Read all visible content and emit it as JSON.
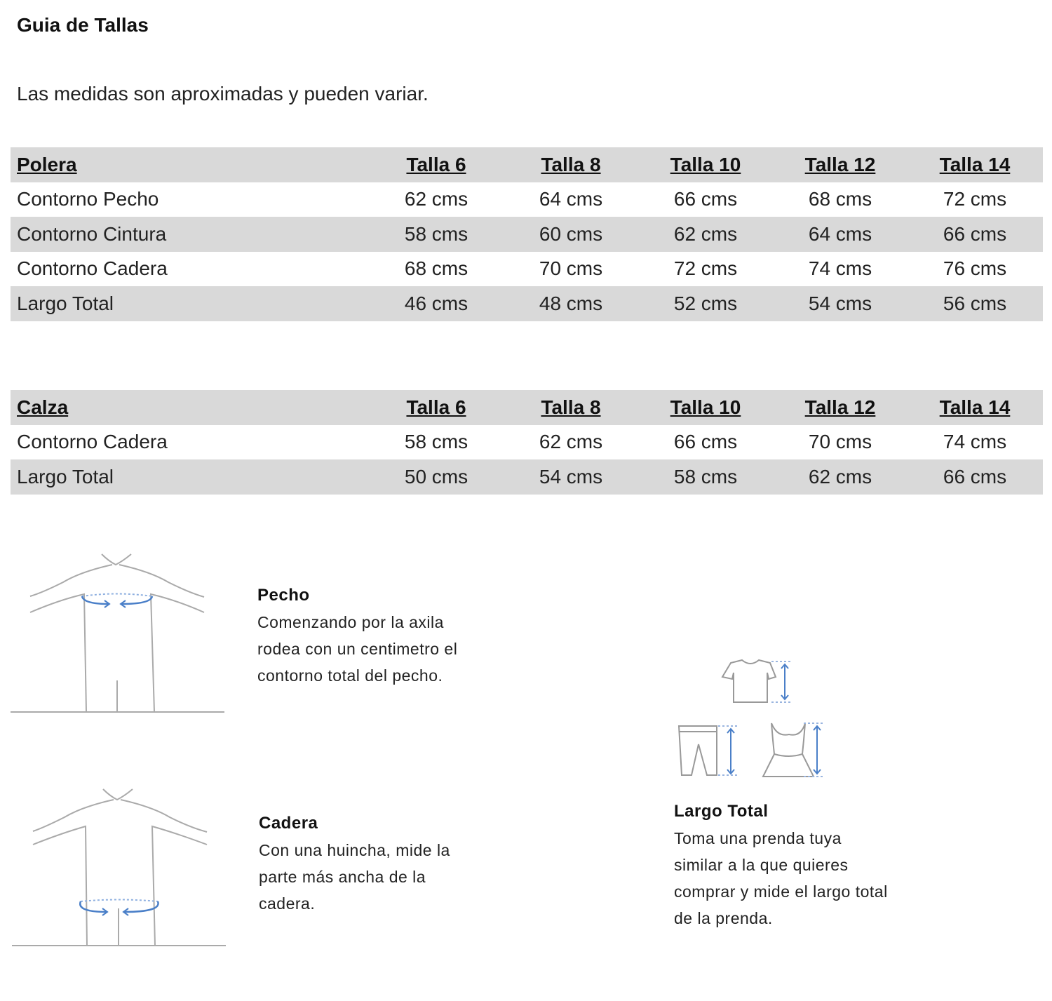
{
  "title": "Guia de Tallas",
  "subtitle": "Las medidas son aproximadas y pueden variar.",
  "tables": [
    {
      "header": [
        "Polera",
        "Talla 6",
        "Talla 8",
        "Talla 10",
        "Talla 12",
        "Talla 14"
      ],
      "rows": [
        [
          "Contorno Pecho",
          "62 cms",
          "64 cms",
          "66 cms",
          "68 cms",
          "72 cms"
        ],
        [
          "Contorno Cintura",
          "58 cms",
          "60 cms",
          "62 cms",
          "64 cms",
          "66 cms"
        ],
        [
          "Contorno Cadera",
          "68 cms",
          "70 cms",
          "72 cms",
          "74 cms",
          "76 cms"
        ],
        [
          "Largo Total",
          "46 cms",
          "48 cms",
          "52 cms",
          "54 cms",
          "56 cms"
        ]
      ]
    },
    {
      "header": [
        "Calza",
        "Talla 6",
        "Talla 8",
        "Talla 10",
        "Talla 12",
        "Talla 14"
      ],
      "rows": [
        [
          "Contorno Cadera",
          "58 cms",
          "62 cms",
          "66 cms",
          "70 cms",
          "74 cms"
        ],
        [
          "Largo Total",
          "50 cms",
          "54 cms",
          "58 cms",
          "62 cms",
          "66 cms"
        ]
      ]
    }
  ],
  "guides": {
    "pecho": {
      "title": "Pecho",
      "lines": [
        "Comenzando por la axila",
        "rodea con un centimetro el",
        "contorno total del pecho."
      ]
    },
    "cadera": {
      "title": "Cadera",
      "lines": [
        "Con una huincha, mide la",
        "parte más ancha de la",
        "cadera."
      ]
    },
    "largo": {
      "title": "Largo Total",
      "lines": [
        "Toma una prenda tuya",
        "similar a la que quieres",
        "comprar y mide el largo total",
        "de la prenda."
      ]
    }
  },
  "colors": {
    "row_gray": "#d9d9d9",
    "measure_blue": "#4a7fc8",
    "outline": "#999999"
  }
}
